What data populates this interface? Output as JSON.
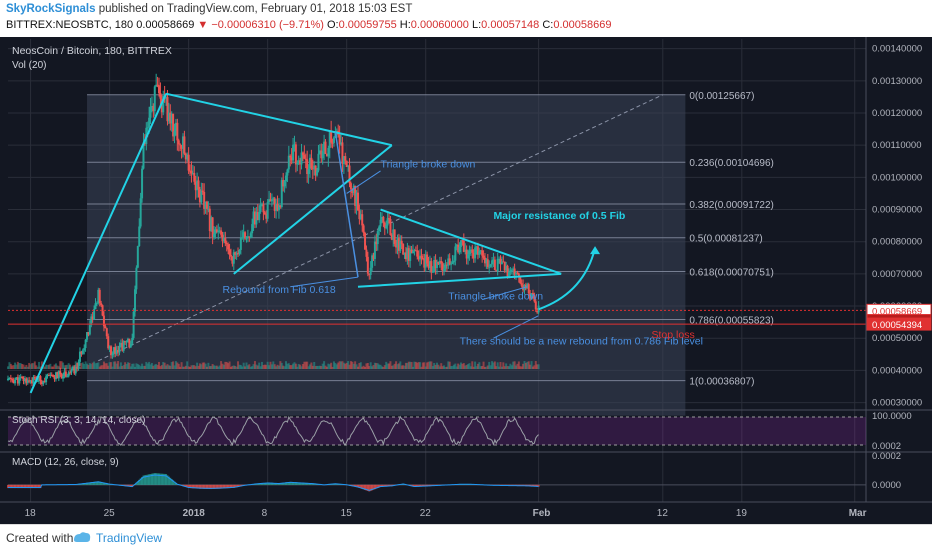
{
  "header": {
    "author": "SkyRockSignals",
    "published": "published on TradingView.com, February 01, 2018 15:03 EST",
    "symbol": "BITTREX:NEOSBTC, 180",
    "last": "0.00058669",
    "change": "−0.00006310 (−9.71%)",
    "open_label": "O:",
    "open": "0.00059755",
    "high_label": "H:",
    "high": "0.00060000",
    "low_label": "L:",
    "low": "0.00057148",
    "close_label": "C:",
    "close": "0.00058669"
  },
  "footer": {
    "created": "Created with",
    "brand": "TradingView"
  },
  "colors": {
    "bg": "#131722",
    "grid": "#2a2e39",
    "up": "#26a69a",
    "down": "#ef5350",
    "annot": "#4a90e2",
    "pattern": "#22d3e6",
    "fib_box": "#3b4358",
    "redline": "#e03131",
    "stoch": "#9c27b0"
  },
  "chart_data": [
    {
      "type": "candlestick",
      "title": "NeosCoin / Bitcoin, 180, BITTREX",
      "subtitle": "Vol (20)",
      "x_tick_labels": [
        "18",
        "25",
        "2018",
        "8",
        "15",
        "22",
        "Feb",
        "12",
        "19",
        "Mar"
      ],
      "y_tick_labels": [
        "0.00140000",
        "0.00130000",
        "0.00120000",
        "0.00110000",
        "0.00100000",
        "0.00090000",
        "0.00080000",
        "0.00070000",
        "0.00060000",
        "0.00050000",
        "0.00040000",
        "0.00030000"
      ],
      "ylim": [
        0.00028,
        0.00143
      ],
      "x_range_days": [
        [
          "Dec 16 2017",
          "Mar 02 2018"
        ]
      ],
      "price_path": [
        [
          "Dec 16 2017",
          0.00037
        ],
        [
          "Dec 19 2017",
          0.00037
        ],
        [
          "Dec 22 2017",
          0.0004
        ],
        [
          "Dec 24 2017",
          0.00063
        ],
        [
          "Dec 25 2017",
          0.00046
        ],
        [
          "Dec 27 2017",
          0.00049
        ],
        [
          "Dec 28 2017",
          0.00108
        ],
        [
          "Dec 29 2017",
          0.00126
        ],
        [
          "Dec 30 2017",
          0.00121
        ],
        [
          "Jan 01 2018",
          0.00105
        ],
        [
          "Jan 03 2018",
          0.00085
        ],
        [
          "Jan 05 2018",
          0.00075
        ],
        [
          "Jan 07 2018",
          0.00088
        ],
        [
          "Jan 09 2018",
          0.00092
        ],
        [
          "Jan 10 2018",
          0.00108
        ],
        [
          "Jan 12 2018",
          0.00102
        ],
        [
          "Jan 14 2018",
          0.00114
        ],
        [
          "Jan 16 2018",
          0.00091
        ],
        [
          "Jan 17 2018",
          0.0007
        ],
        [
          "Jan 18 2018",
          0.00089
        ],
        [
          "Jan 20 2018",
          0.00077
        ],
        [
          "Jan 23 2018",
          0.00072
        ],
        [
          "Jan 25 2018",
          0.00078
        ],
        [
          "Jan 28 2018",
          0.00074
        ],
        [
          "Jan 31 2018",
          0.00066
        ],
        [
          "Feb 01 2018",
          0.00058669
        ]
      ],
      "fibonacci": [
        {
          "label": "0(0.00125667)",
          "value": 0.00125667
        },
        {
          "label": "0.236(0.00104696)",
          "value": 0.00104696
        },
        {
          "label": "0.382(0.00091722)",
          "value": 0.00091722
        },
        {
          "label": "0.5(0.00081237)",
          "value": 0.00081237
        },
        {
          "label": "0.618(0.00070751)",
          "value": 0.00070751
        },
        {
          "label": "0.786(0.00055823)",
          "value": 0.00055823
        },
        {
          "label": "1(0.00036807)",
          "value": 0.00036807
        }
      ],
      "price_labels": [
        {
          "value": 0.00058669,
          "text": "0.00058669"
        },
        {
          "value": 0.000555,
          "text": "56:58"
        },
        {
          "value": 0.00054394,
          "text": "0.00054394"
        }
      ],
      "stop_loss": {
        "value": 0.00054394,
        "label": "Stop loss"
      },
      "annotations": [
        {
          "text": "Triangle broke down",
          "date": "Jan 18 2018",
          "value": 0.00103
        },
        {
          "text": "Major resistance of 0.5 Fib",
          "date": "Jan 28 2018",
          "value": 0.00087
        },
        {
          "text": "Rebound from Fib 0.618",
          "date": "Jan 04 2018",
          "value": 0.00064
        },
        {
          "text": "Triangle broke down",
          "date": "Jan 24 2018",
          "value": 0.00062
        },
        {
          "text": "There should be a new rebound from 0.786 Fib level",
          "date": "Jan 25 2018",
          "value": 0.00048
        }
      ]
    },
    {
      "type": "line",
      "title": "Stoch RSI (3, 3, 14, 14, close)",
      "y_tick_labels": [
        "100.0000",
        "0.0002"
      ]
    },
    {
      "type": "line",
      "title": "MACD (12, 26, close, 9)",
      "y_tick_labels": [
        "0.0002",
        "0.0000"
      ]
    }
  ]
}
